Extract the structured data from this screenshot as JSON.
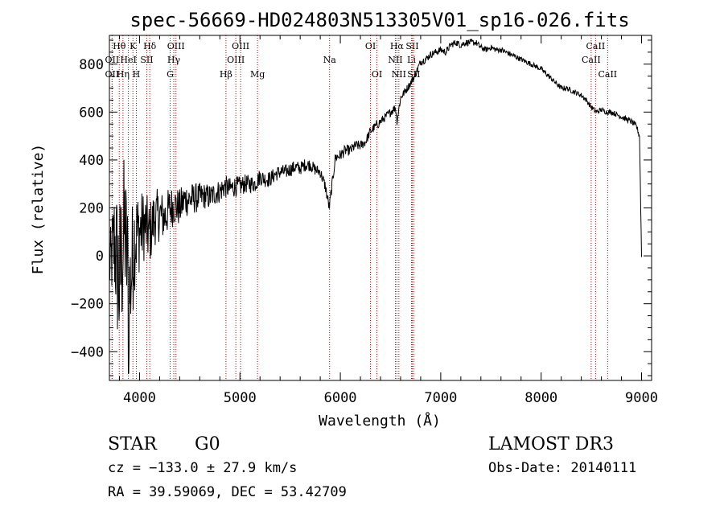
{
  "chart_data": {
    "type": "line",
    "title": "spec-56669-HD024803N513305V01_sp16-026.fits",
    "xlabel": "Wavelength (Å)",
    "ylabel": "Flux (relative)",
    "xlim": [
      3700,
      9100
    ],
    "ylim": [
      -520,
      920
    ],
    "xticks": [
      4000,
      5000,
      6000,
      7000,
      8000,
      9000
    ],
    "yticks": [
      -400,
      -200,
      0,
      200,
      400,
      600,
      800
    ],
    "xtick_labels": [
      "4000",
      "5000",
      "6000",
      "7000",
      "8000",
      "9000"
    ],
    "ytick_labels": [
      "−400",
      "−200",
      "0",
      "200",
      "400",
      "600",
      "800"
    ],
    "spectrum": {
      "x": [
        3700,
        3750,
        3800,
        3850,
        3900,
        3950,
        4000,
        4050,
        4100,
        4150,
        4200,
        4250,
        4300,
        4350,
        4400,
        4450,
        4500,
        4550,
        4600,
        4650,
        4700,
        4750,
        4800,
        4850,
        4900,
        4950,
        5000,
        5050,
        5100,
        5150,
        5200,
        5250,
        5300,
        5350,
        5400,
        5450,
        5500,
        5550,
        5600,
        5650,
        5700,
        5750,
        5800,
        5850,
        5890,
        5950,
        6000,
        6050,
        6100,
        6150,
        6200,
        6250,
        6300,
        6350,
        6400,
        6450,
        6500,
        6550,
        6563,
        6600,
        6650,
        6700,
        6750,
        6800,
        6850,
        6900,
        6950,
        7000,
        7050,
        7100,
        7150,
        7200,
        7250,
        7300,
        7350,
        7400,
        7450,
        7500,
        7550,
        7600,
        7650,
        7700,
        7750,
        7800,
        7850,
        7900,
        7950,
        8000,
        8050,
        8100,
        8150,
        8200,
        8250,
        8300,
        8350,
        8400,
        8450,
        8500,
        8550,
        8600,
        8650,
        8700,
        8750,
        8800,
        8850,
        8900,
        8950,
        8980,
        9000
      ],
      "y": [
        -60,
        60,
        -120,
        120,
        -160,
        80,
        100,
        130,
        90,
        160,
        170,
        160,
        200,
        210,
        200,
        235,
        235,
        240,
        245,
        250,
        245,
        260,
        270,
        290,
        280,
        290,
        290,
        300,
        300,
        300,
        330,
        320,
        320,
        340,
        350,
        350,
        360,
        370,
        365,
        380,
        380,
        360,
        350,
        290,
        200,
        410,
        420,
        440,
        440,
        460,
        460,
        475,
        520,
        540,
        560,
        580,
        600,
        620,
        560,
        660,
        690,
        720,
        760,
        810,
        820,
        840,
        850,
        860,
        850,
        880,
        890,
        880,
        890,
        890,
        890,
        870,
        860,
        870,
        860,
        860,
        850,
        840,
        830,
        820,
        810,
        800,
        790,
        780,
        760,
        740,
        720,
        700,
        700,
        690,
        680,
        670,
        650,
        620,
        600,
        610,
        600,
        600,
        590,
        580,
        570,
        560,
        540,
        500,
        0
      ],
      "noise_amplitude": [
        120,
        260,
        380,
        320,
        300,
        230,
        170,
        150,
        140,
        120,
        110,
        100,
        90,
        85,
        80,
        75,
        70,
        65,
        60,
        55,
        55,
        50,
        50,
        48,
        46,
        44,
        42,
        40,
        38,
        36,
        35,
        34,
        33,
        32,
        31,
        30,
        30,
        29,
        28,
        27,
        26,
        25,
        25,
        25,
        25,
        24,
        24,
        23,
        22,
        22,
        21,
        20,
        20,
        20,
        19,
        18,
        18,
        18,
        18,
        18,
        17,
        16,
        16,
        16,
        16,
        15,
        15,
        15,
        15,
        14,
        14,
        14,
        14,
        14,
        13,
        13,
        12,
        12,
        12,
        12,
        12,
        11,
        11,
        11,
        11,
        11,
        11,
        11,
        11,
        11,
        11,
        11,
        11,
        11,
        11,
        11,
        11,
        11,
        11,
        11,
        11,
        11,
        11,
        11,
        12,
        12,
        12,
        15,
        15
      ]
    },
    "lines": [
      {
        "name": "Hθ",
        "wl": 3798,
        "row": 0
      },
      {
        "name": "OII",
        "wl": 3727,
        "row": 1
      },
      {
        "name": "OII",
        "wl": 3727,
        "row": 2
      },
      {
        "name": "Hη",
        "wl": 3835,
        "row": 2
      },
      {
        "name": "K",
        "wl": 3934,
        "row": 0
      },
      {
        "name": "HeI",
        "wl": 3889,
        "row": 1
      },
      {
        "name": "H",
        "wl": 3968,
        "row": 2
      },
      {
        "name": "Hδ",
        "wl": 4102,
        "row": 0
      },
      {
        "name": "SII",
        "wl": 4072,
        "row": 1
      },
      {
        "name": "OIII",
        "wl": 4363,
        "row": 0
      },
      {
        "name": "Hγ",
        "wl": 4341,
        "row": 1
      },
      {
        "name": "G",
        "wl": 4305,
        "row": 2
      },
      {
        "name": "Hβ",
        "wl": 4861,
        "row": 2
      },
      {
        "name": "OIII",
        "wl": 5007,
        "row": 0
      },
      {
        "name": "OIII",
        "wl": 4959,
        "row": 1
      },
      {
        "name": "Mg",
        "wl": 5175,
        "row": 2
      },
      {
        "name": "Na",
        "wl": 5893,
        "row": 1
      },
      {
        "name": "OI",
        "wl": 6300,
        "row": 0
      },
      {
        "name": "OI",
        "wl": 6364,
        "row": 2
      },
      {
        "name": "Hα",
        "wl": 6563,
        "row": 0
      },
      {
        "name": "NII",
        "wl": 6548,
        "row": 1
      },
      {
        "name": "NII",
        "wl": 6583,
        "row": 2
      },
      {
        "name": "SII",
        "wl": 6716,
        "row": 0
      },
      {
        "name": "Li",
        "wl": 6708,
        "row": 1
      },
      {
        "name": "SII",
        "wl": 6731,
        "row": 2
      },
      {
        "name": "CaII",
        "wl": 8542,
        "row": 0
      },
      {
        "name": "CaII",
        "wl": 8498,
        "row": 1
      },
      {
        "name": "CaII",
        "wl": 8662,
        "row": 2
      }
    ]
  },
  "footer": {
    "object_class": "STAR",
    "subclass": "G0",
    "survey": "LAMOST DR3",
    "redshift": "cz = −133.0 ± 27.9 km/s",
    "obs_date": "Obs-Date: 20140111",
    "coords": "RA =  39.59069, DEC =  53.42709"
  }
}
